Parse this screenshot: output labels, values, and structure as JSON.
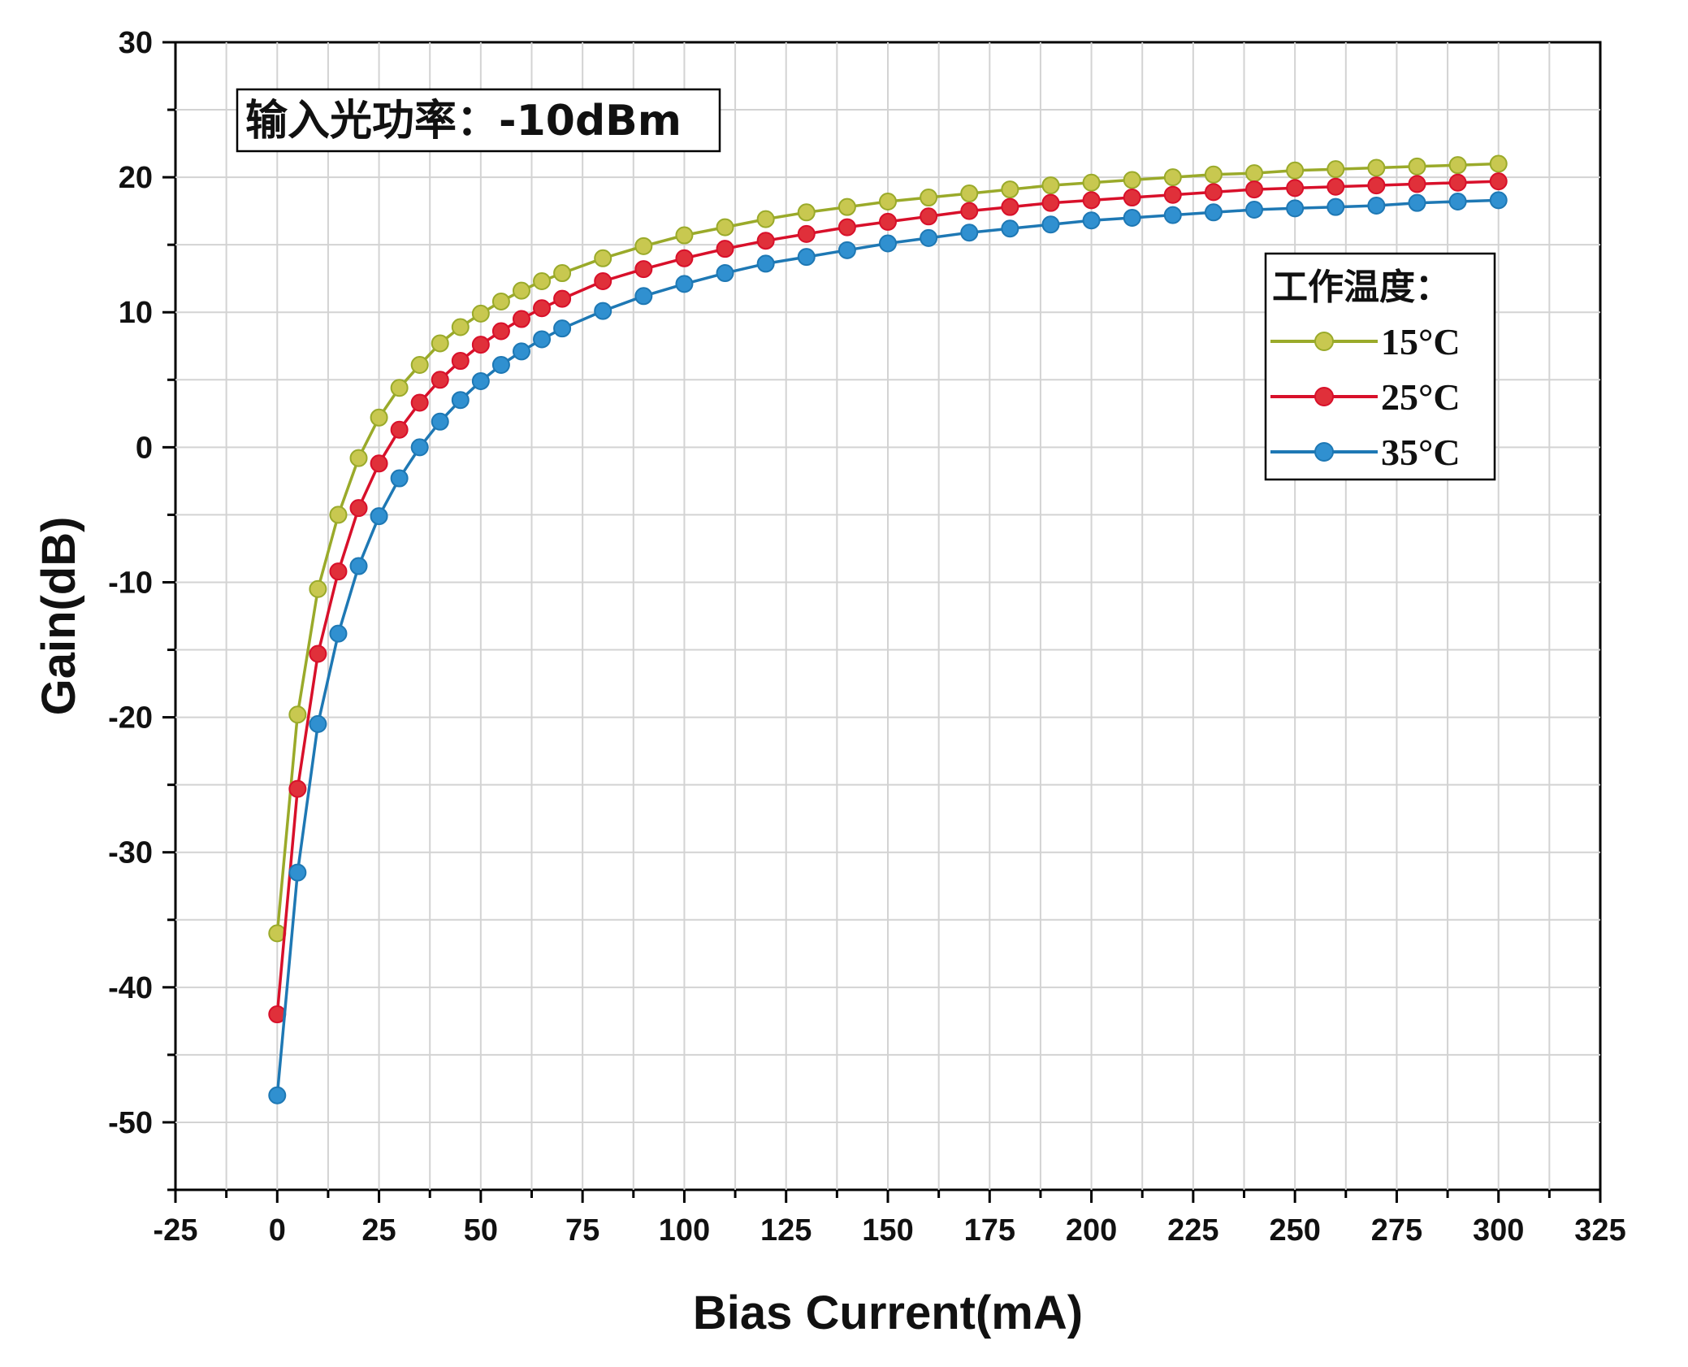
{
  "chart_data": {
    "type": "line",
    "title": "",
    "xlabel": "Bias Current(mA)",
    "ylabel": "Gain(dB)",
    "xlim": [
      -25,
      325
    ],
    "ylim": [
      -55,
      30
    ],
    "x_ticks": [
      -25,
      0,
      25,
      50,
      75,
      100,
      125,
      150,
      175,
      200,
      225,
      250,
      275,
      300,
      325
    ],
    "y_ticks": [
      -50,
      -40,
      -30,
      -20,
      -10,
      0,
      10,
      20,
      30
    ],
    "grid": true,
    "annotation": "输入光功率：-10dBm",
    "legend": {
      "title": "工作温度：",
      "position": "right"
    },
    "x": [
      0,
      5,
      10,
      15,
      20,
      25,
      30,
      35,
      40,
      45,
      50,
      55,
      60,
      65,
      70,
      80,
      90,
      100,
      110,
      120,
      130,
      140,
      150,
      160,
      170,
      180,
      190,
      200,
      210,
      220,
      230,
      240,
      250,
      260,
      270,
      280,
      290,
      300
    ],
    "series": [
      {
        "name": "15°C",
        "color": "#9aaa2a",
        "marker_color": "#c8c850",
        "values": [
          -36,
          -19.8,
          -10.5,
          -5.0,
          -0.8,
          2.2,
          4.4,
          6.1,
          7.7,
          8.9,
          9.9,
          10.8,
          11.6,
          12.3,
          12.9,
          14.0,
          14.9,
          15.7,
          16.3,
          16.9,
          17.4,
          17.8,
          18.2,
          18.5,
          18.8,
          19.1,
          19.4,
          19.6,
          19.8,
          20.0,
          20.2,
          20.3,
          20.5,
          20.6,
          20.7,
          20.8,
          20.9,
          21.0
        ]
      },
      {
        "name": "25°C",
        "color": "#d8102a",
        "marker_color": "#e0303a",
        "values": [
          -42,
          -25.3,
          -15.3,
          -9.2,
          -4.5,
          -1.2,
          1.3,
          3.3,
          5.0,
          6.4,
          7.6,
          8.6,
          9.5,
          10.3,
          11.0,
          12.3,
          13.2,
          14.0,
          14.7,
          15.3,
          15.8,
          16.3,
          16.7,
          17.1,
          17.5,
          17.8,
          18.1,
          18.3,
          18.5,
          18.7,
          18.9,
          19.1,
          19.2,
          19.3,
          19.4,
          19.5,
          19.6,
          19.7
        ]
      },
      {
        "name": "35°C",
        "color": "#1e78b4",
        "marker_color": "#3090d0",
        "values": [
          -48,
          -31.5,
          -20.5,
          -13.8,
          -8.8,
          -5.1,
          -2.3,
          0.0,
          1.9,
          3.5,
          4.9,
          6.1,
          7.1,
          8.0,
          8.8,
          10.1,
          11.2,
          12.1,
          12.9,
          13.6,
          14.1,
          14.6,
          15.1,
          15.5,
          15.9,
          16.2,
          16.5,
          16.8,
          17.0,
          17.2,
          17.4,
          17.6,
          17.7,
          17.8,
          17.9,
          18.1,
          18.2,
          18.3
        ]
      }
    ]
  }
}
